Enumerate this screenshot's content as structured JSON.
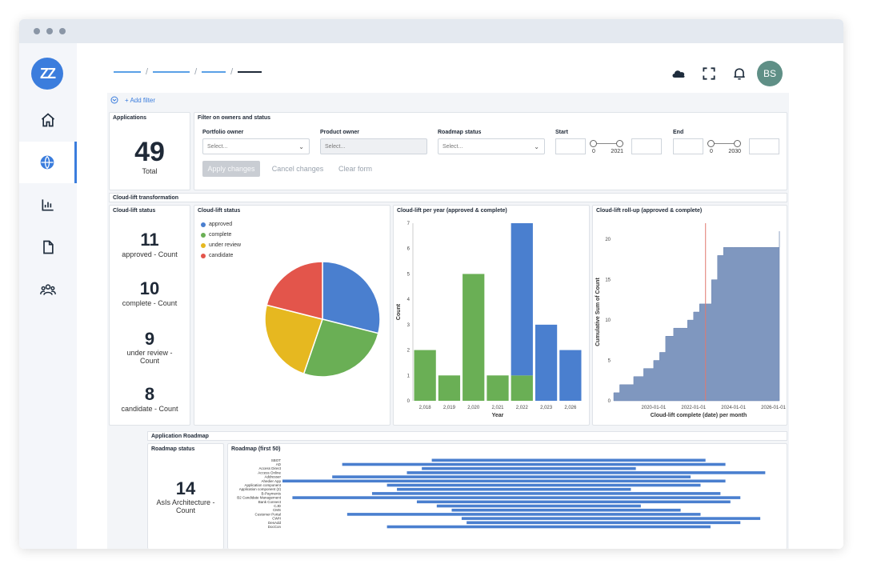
{
  "avatar_initials": "BS",
  "logo_text": "ZZ",
  "filter": {
    "add_label": "+ Add filter"
  },
  "applications": {
    "title": "Applications",
    "value": "49",
    "label": "Total"
  },
  "filter_panel": {
    "title": "Filter on owners and status",
    "portfolio_owner": {
      "label": "Portfolio owner",
      "placeholder": "Select..."
    },
    "product_owner": {
      "label": "Product owner",
      "placeholder": "Select..."
    },
    "roadmap_status": {
      "label": "Roadmap status",
      "placeholder": "Select..."
    },
    "start": {
      "label": "Start",
      "min": "0",
      "max": "2021"
    },
    "end": {
      "label": "End",
      "min": "0",
      "max": "2030"
    },
    "apply": "Apply changes",
    "cancel": "Cancel changes",
    "clear": "Clear form"
  },
  "cloud_section": {
    "title": "Cloud-lift transformation"
  },
  "cloud_status_counts": {
    "title": "Cloud-lift status",
    "items": [
      {
        "value": "11",
        "label": "approved - Count"
      },
      {
        "value": "10",
        "label": "complete - Count"
      },
      {
        "value": "9",
        "label": "under review - Count"
      },
      {
        "value": "8",
        "label": "candidate - Count"
      }
    ]
  },
  "pie_panel": {
    "title": "Cloud-lift status"
  },
  "bar_panel": {
    "title": "Cloud-lift per year (approved & complete)"
  },
  "area_panel": {
    "title": "Cloud-lift roll-up (approved & complete)"
  },
  "roadmap_section": {
    "title": "Application Roadmap"
  },
  "roadmap_status": {
    "title": "Roadmap status",
    "value": "14",
    "label": "AsIs Architecture - Count"
  },
  "roadmap_gantt": {
    "title": "Roadmap (first 50)"
  },
  "colors": {
    "approved": "#4a7fcf",
    "complete": "#6aaf55",
    "under_review": "#e6b820",
    "candidate": "#e3554b",
    "area": "#7f97bf",
    "accent": "#3b7ddd"
  },
  "chart_data": [
    {
      "type": "pie",
      "title": "Cloud-lift status",
      "categories": [
        "approved",
        "complete",
        "under review",
        "candidate"
      ],
      "values": [
        11,
        10,
        9,
        8
      ]
    },
    {
      "type": "bar",
      "title": "Cloud-lift per year (approved & complete)",
      "categories": [
        "2,018",
        "2,019",
        "2,020",
        "2,021",
        "2,022",
        "2,023",
        "2,026"
      ],
      "series": [
        {
          "name": "complete",
          "values": [
            2,
            1,
            5,
            1,
            1,
            0,
            0
          ]
        },
        {
          "name": "approved",
          "values": [
            0,
            0,
            0,
            0,
            6,
            3,
            2
          ]
        }
      ],
      "xlabel": "Year",
      "ylabel": "Count",
      "ylim": [
        0,
        7
      ],
      "yticks": [
        "0",
        "1",
        "2",
        "3",
        "4",
        "5",
        "6",
        "7"
      ]
    },
    {
      "type": "area",
      "title": "Cloud-lift roll-up (approved & complete)",
      "xlabel": "Cloud-lift complete (date) per month",
      "ylabel": "Cumulative Sum of Count",
      "xticks": [
        "2020-01-01",
        "2022-01-01",
        "2024-01-01",
        "2026-01-01"
      ],
      "yticks": [
        "0",
        "5",
        "10",
        "15",
        "20"
      ],
      "ylim": [
        0,
        22
      ],
      "x": [
        2018.0,
        2018.3,
        2018.6,
        2019.0,
        2019.5,
        2020.0,
        2020.3,
        2020.6,
        2021.0,
        2021.4,
        2021.7,
        2022.0,
        2022.3,
        2022.6,
        2022.9,
        2023.2,
        2023.5,
        2024.0,
        2024.5,
        2025.0,
        2025.5,
        2026.0,
        2026.3
      ],
      "values": [
        1,
        2,
        2,
        3,
        4,
        5,
        6,
        8,
        9,
        9,
        10,
        11,
        12,
        12,
        15,
        18,
        19,
        19,
        19,
        19,
        19,
        19,
        21
      ],
      "marker": 2022.6
    },
    {
      "type": "bar",
      "title": "Roadmap (first 50)",
      "categories": [
        "SBOT",
        "AD",
        "Access Direct",
        "Access Online",
        "Addresser",
        "Ahedier App",
        "Application component",
        "Application component (2)",
        "B-Payments",
        "B2 Candidate Management",
        "Bank Connect",
        "CJD",
        "CMS",
        "Customer Portal",
        "CWH",
        "DesAdd",
        "DocCon"
      ],
      "series": [
        {
          "name": "start",
          "values": [
            0.3,
            0.12,
            0.28,
            0.25,
            0.1,
            0.0,
            0.21,
            0.23,
            0.18,
            0.02,
            0.27,
            0.31,
            0.34,
            0.13,
            0.36,
            0.37,
            0.21
          ]
        },
        {
          "name": "end",
          "values": [
            0.85,
            0.89,
            0.71,
            0.97,
            0.82,
            0.89,
            0.84,
            0.7,
            0.88,
            0.92,
            0.9,
            0.72,
            0.8,
            0.84,
            0.96,
            0.92,
            0.86
          ]
        }
      ]
    }
  ]
}
